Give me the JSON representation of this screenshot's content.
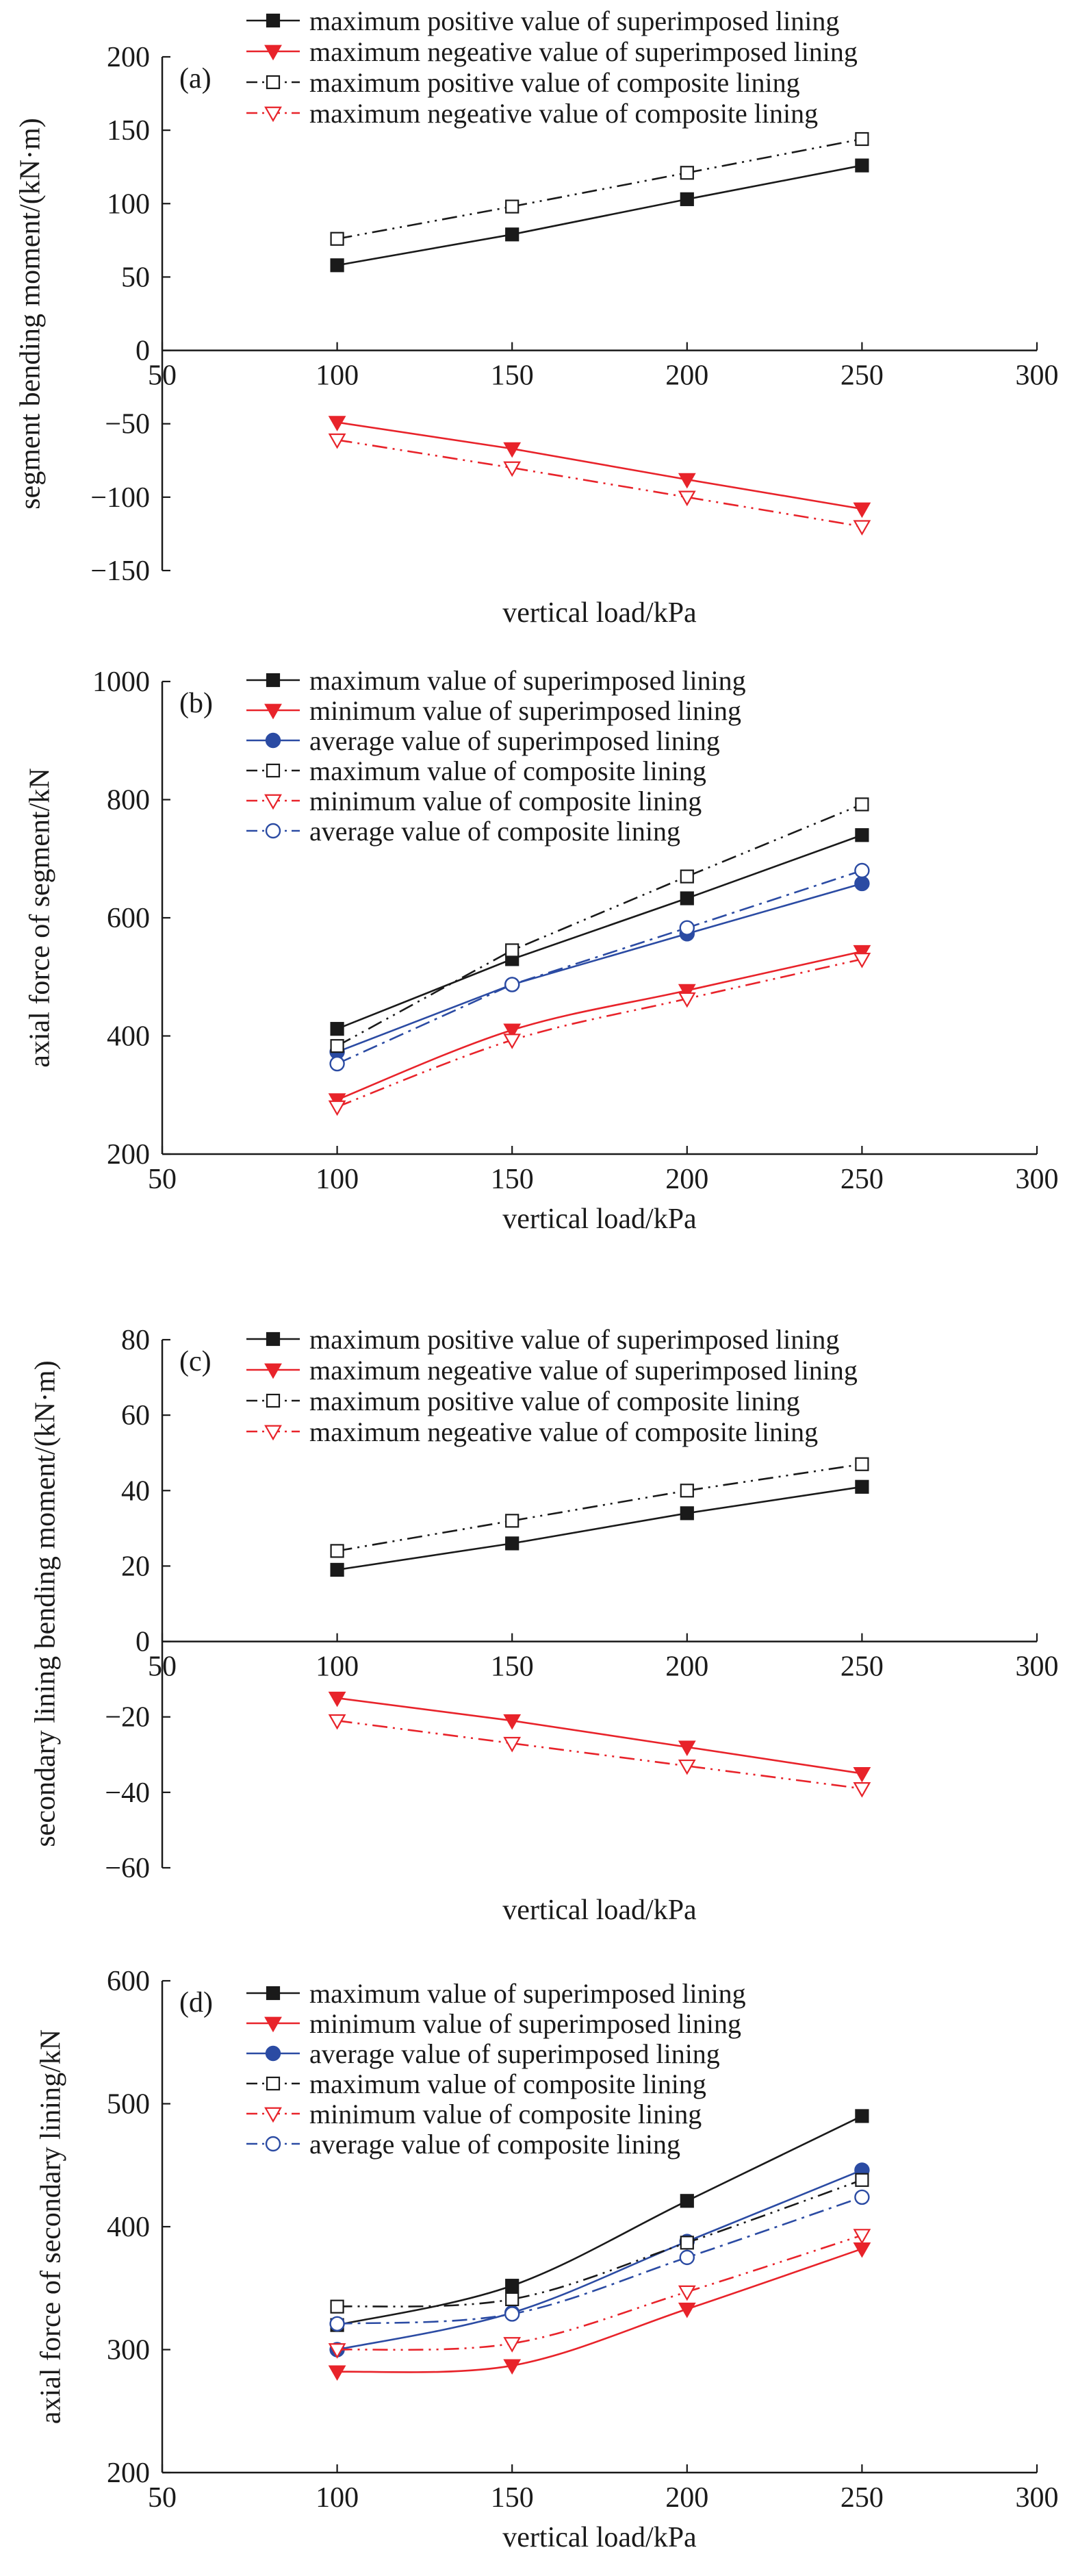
{
  "chart_data": [
    {
      "type": "line",
      "panel_label": "(a)",
      "title": "",
      "xlabel": "vertical load/kPa",
      "ylabel": "segment bending moment/(kN·m)",
      "xlim": [
        50,
        300
      ],
      "ylim": [
        -150,
        200
      ],
      "x_ticks": [
        50,
        100,
        150,
        200,
        250,
        300
      ],
      "y_ticks": [
        -150,
        -100,
        -50,
        0,
        50,
        100,
        150,
        200
      ],
      "axis": "x axis drawn at y = 0",
      "grid": false,
      "legend_position": "top",
      "x": [
        100,
        150,
        200,
        250
      ],
      "series": [
        {
          "name": "maximum positive value of superimposed lining",
          "values": [
            58,
            79,
            103,
            126
          ],
          "color": "#1a1a1a",
          "marker": "square-filled",
          "line": "solid",
          "smooth": false
        },
        {
          "name": "maximum negeative value of superimposed lining",
          "values": [
            -49,
            -67,
            -88,
            -108
          ],
          "color": "#e8232a",
          "marker": "triangle-down-filled",
          "line": "solid",
          "smooth": false
        },
        {
          "name": "maximum positive value of composite lining",
          "values": [
            76,
            98,
            121,
            144
          ],
          "color": "#1a1a1a",
          "marker": "square-open",
          "line": "dashdotdot",
          "smooth": false
        },
        {
          "name": "maximum negeative value of composite lining",
          "values": [
            -61,
            -80,
            -100,
            -120
          ],
          "color": "#e8232a",
          "marker": "triangle-down-open",
          "line": "dashdotdot",
          "smooth": false
        }
      ]
    },
    {
      "type": "line",
      "panel_label": "(b)",
      "title": "",
      "xlabel": "vertical load/kPa",
      "ylabel": "axial force of segment/kN",
      "xlim": [
        50,
        300
      ],
      "ylim": [
        200,
        1000
      ],
      "x_ticks": [
        50,
        100,
        150,
        200,
        250,
        300
      ],
      "y_ticks": [
        200,
        400,
        600,
        800,
        1000
      ],
      "axis": "bottom",
      "grid": false,
      "legend_position": "top",
      "x": [
        100,
        150,
        200,
        250
      ],
      "series": [
        {
          "name": "maximum value of superimposed lining",
          "values": [
            412,
            530,
            633,
            740
          ],
          "color": "#1a1a1a",
          "marker": "square-filled",
          "line": "solid",
          "smooth": false
        },
        {
          "name": "minimum value of superimposed lining",
          "values": [
            292,
            410,
            477,
            543
          ],
          "color": "#e8232a",
          "marker": "triangle-down-filled",
          "line": "solid",
          "smooth": true
        },
        {
          "name": "average value of superimposed lining",
          "values": [
            373,
            487,
            573,
            658
          ],
          "color": "#2b4ba3",
          "marker": "circle-filled",
          "line": "solid",
          "smooth": false
        },
        {
          "name": "maximum value of composite lining",
          "values": [
            383,
            545,
            670,
            792
          ],
          "color": "#1a1a1a",
          "marker": "square-open",
          "line": "dashdotdot",
          "smooth": false
        },
        {
          "name": "minimum value of composite lining",
          "values": [
            280,
            393,
            463,
            530
          ],
          "color": "#e8232a",
          "marker": "triangle-down-open",
          "line": "dashdotdot",
          "smooth": true
        },
        {
          "name": "average value of composite lining",
          "values": [
            353,
            487,
            583,
            680
          ],
          "color": "#2b4ba3",
          "marker": "circle-open",
          "line": "dashdot",
          "smooth": false
        }
      ]
    },
    {
      "type": "line",
      "panel_label": "(c)",
      "title": "",
      "xlabel": "vertical load/kPa",
      "ylabel": "secondary lining bending moment/(kN·m)",
      "xlim": [
        50,
        300
      ],
      "ylim": [
        -60,
        80
      ],
      "x_ticks": [
        50,
        100,
        150,
        200,
        250,
        300
      ],
      "y_ticks": [
        -60,
        -40,
        -20,
        0,
        20,
        40,
        60,
        80
      ],
      "axis": "x axis drawn at y = 0",
      "grid": false,
      "legend_position": "top",
      "x": [
        100,
        150,
        200,
        250
      ],
      "series": [
        {
          "name": "maximum positive value of superimposed lining",
          "values": [
            19,
            26,
            34,
            41
          ],
          "color": "#1a1a1a",
          "marker": "square-filled",
          "line": "solid",
          "smooth": false
        },
        {
          "name": "maximum negeative value of superimposed lining",
          "values": [
            -15,
            -21,
            -28,
            -35
          ],
          "color": "#e8232a",
          "marker": "triangle-down-filled",
          "line": "solid",
          "smooth": false
        },
        {
          "name": "maximum positive value of composite lining",
          "values": [
            24,
            32,
            40,
            47
          ],
          "color": "#1a1a1a",
          "marker": "square-open",
          "line": "dashdotdot",
          "smooth": false
        },
        {
          "name": "maximum negeative value of composite lining",
          "values": [
            -21,
            -27,
            -33,
            -39
          ],
          "color": "#e8232a",
          "marker": "triangle-down-open",
          "line": "dashdotdot",
          "smooth": false
        }
      ]
    },
    {
      "type": "line",
      "panel_label": "(d)",
      "title": "",
      "xlabel": "vertical load/kPa",
      "ylabel": "axial force of secondary lining/kN",
      "xlim": [
        50,
        300
      ],
      "ylim": [
        200,
        600
      ],
      "x_ticks": [
        50,
        100,
        150,
        200,
        250,
        300
      ],
      "y_ticks": [
        200,
        300,
        400,
        500,
        600
      ],
      "axis": "bottom",
      "grid": false,
      "legend_position": "top",
      "x": [
        100,
        150,
        200,
        250
      ],
      "series": [
        {
          "name": "maximum value of superimposed lining",
          "values": [
            320,
            352,
            421,
            490
          ],
          "color": "#1a1a1a",
          "marker": "square-filled",
          "line": "solid",
          "smooth": true
        },
        {
          "name": "minimum value of superimposed lining",
          "values": [
            282,
            287,
            333,
            382
          ],
          "color": "#e8232a",
          "marker": "triangle-down-filled",
          "line": "solid",
          "smooth": true
        },
        {
          "name": "average value of superimposed lining",
          "values": [
            300,
            330,
            388,
            446
          ],
          "color": "#2b4ba3",
          "marker": "circle-filled",
          "line": "solid",
          "smooth": true
        },
        {
          "name": "maximum value of composite lining",
          "values": [
            335,
            341,
            387,
            438
          ],
          "color": "#1a1a1a",
          "marker": "square-open",
          "line": "dashdotdot",
          "smooth": true
        },
        {
          "name": "minimum value of composite lining",
          "values": [
            300,
            305,
            347,
            393
          ],
          "color": "#e8232a",
          "marker": "triangle-down-open",
          "line": "dashdotdot",
          "smooth": true
        },
        {
          "name": "average value of composite lining",
          "values": [
            321,
            329,
            375,
            424
          ],
          "color": "#2b4ba3",
          "marker": "circle-open",
          "line": "dashdot",
          "smooth": true
        }
      ]
    }
  ]
}
